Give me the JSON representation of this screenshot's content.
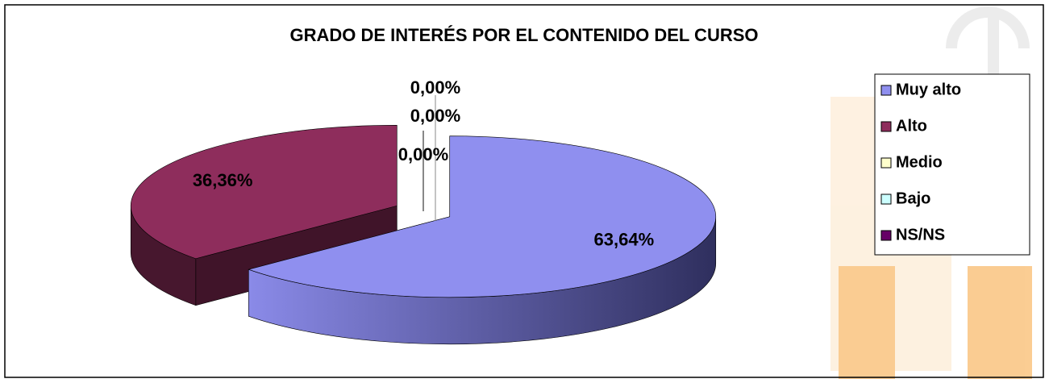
{
  "chart_data": {
    "type": "pie",
    "title": "GRADO DE INTERÉS POR EL CONTENIDO DEL CURSO",
    "categories": [
      "Muy alto",
      "Alto",
      "Medio",
      "Bajo",
      "NS/NS"
    ],
    "values": [
      63.64,
      36.36,
      0,
      0,
      0
    ],
    "value_labels": [
      "63,64%",
      "36,36%",
      "0,00%",
      "0,00%",
      "0,00%"
    ],
    "colors": [
      "#8f8fef",
      "#8e2d5c",
      "#ffffcc",
      "#ccffff",
      "#660066"
    ],
    "legend": "right"
  }
}
